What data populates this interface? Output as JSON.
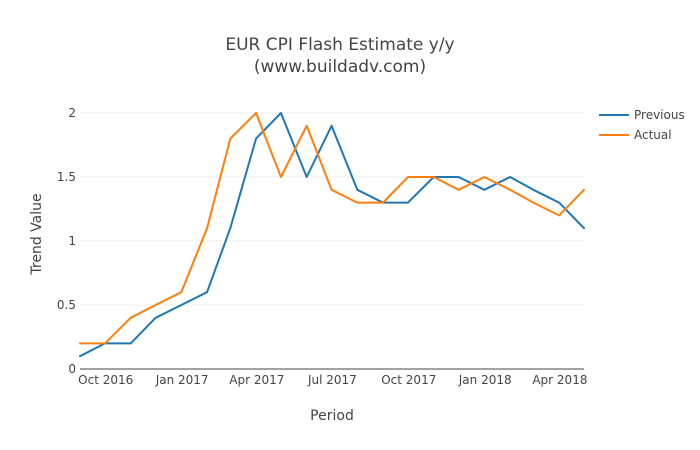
{
  "chart_data": {
    "type": "line",
    "title": "EUR CPI Flash Estimate y/y",
    "subtitle": "(www.buildadv.com)",
    "xlabel": "Period",
    "ylabel": "Trend Value",
    "x": [
      "2016-08-31",
      "2016-09-30",
      "2016-10-31",
      "2016-11-30",
      "2016-12-31",
      "2017-01-31",
      "2017-02-28",
      "2017-03-31",
      "2017-04-30",
      "2017-05-31",
      "2017-06-30",
      "2017-07-31",
      "2017-08-31",
      "2017-09-30",
      "2017-10-31",
      "2017-11-30",
      "2017-12-31",
      "2018-01-31",
      "2018-02-28",
      "2018-03-31",
      "2018-04-30"
    ],
    "series": [
      {
        "name": "Previous",
        "color": "#1f77b4",
        "values": [
          0.1,
          0.2,
          0.2,
          0.4,
          0.5,
          0.6,
          1.1,
          1.8,
          2.0,
          1.5,
          1.9,
          1.4,
          1.3,
          1.3,
          1.5,
          1.5,
          1.4,
          1.5,
          1.4,
          1.3,
          1.1
        ]
      },
      {
        "name": "Actual",
        "color": "#ff7f0e",
        "values": [
          0.2,
          0.2,
          0.4,
          0.5,
          0.6,
          1.1,
          1.8,
          2.0,
          1.5,
          1.9,
          1.4,
          1.3,
          1.3,
          1.5,
          1.5,
          1.4,
          1.5,
          1.4,
          1.3,
          1.2,
          1.4
        ]
      }
    ],
    "x_ticks": [
      {
        "date": "2016-10-01",
        "label": "Oct 2016"
      },
      {
        "date": "2017-01-01",
        "label": "Jan 2017"
      },
      {
        "date": "2017-04-01",
        "label": "Apr 2017"
      },
      {
        "date": "2017-07-01",
        "label": "Jul 2017"
      },
      {
        "date": "2017-10-01",
        "label": "Oct 2017"
      },
      {
        "date": "2018-01-01",
        "label": "Jan 2018"
      },
      {
        "date": "2018-04-01",
        "label": "Apr 2018"
      }
    ],
    "y_ticks": [
      {
        "value": 0,
        "label": "0"
      },
      {
        "value": 0.5,
        "label": "0.5"
      },
      {
        "value": 1,
        "label": "1"
      },
      {
        "value": 1.5,
        "label": "1.5"
      },
      {
        "value": 2,
        "label": "2"
      }
    ],
    "xlim": [
      "2016-08-31",
      "2018-04-30"
    ],
    "ylim": [
      0,
      2.0
    ],
    "grid": true,
    "legend_position": "top-right"
  }
}
